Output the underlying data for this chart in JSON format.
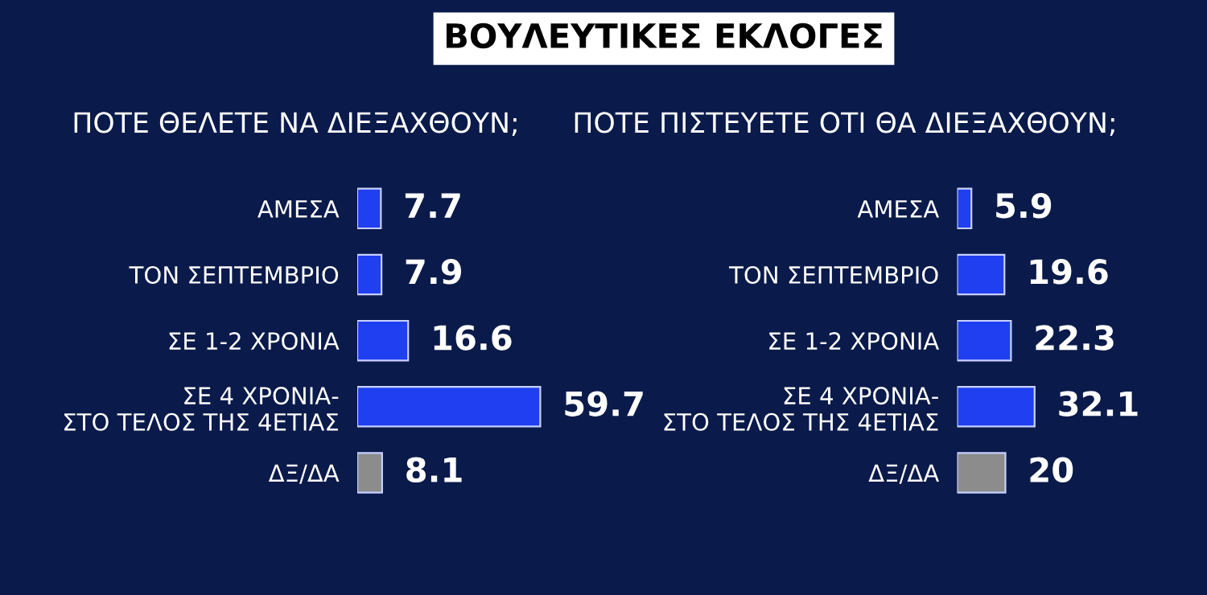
{
  "chart_data": [
    {
      "type": "bar",
      "orientation": "horizontal",
      "title": "ΒΟΥΛΕΥΤΙΚΕΣ ΕΚΛΟΓΕΣ",
      "subtitle": "ΠΟΤΕ ΘΕΛΕΤΕ ΝΑ ΔΙΕΞΑΧΘΟΥΝ;",
      "categories": [
        "ΑΜΕΣΑ",
        "ΤΟΝ ΣΕΠΤΕΜΒΡΙΟ",
        "ΣΕ 1-2 ΧΡΟΝΙΑ",
        "ΣΕ 4 ΧΡΟΝΙΑ-\nΣΤΟ ΤΕΛΟΣ ΤΗΣ 4ΕΤΙΑΣ",
        "ΔΞ/ΔΑ"
      ],
      "values": [
        7.7,
        7.9,
        16.6,
        59.7,
        8.1
      ],
      "colors": [
        "#1f3ff0",
        "#1f3ff0",
        "#1f3ff0",
        "#1f3ff0",
        "#8c8c8c"
      ],
      "data_labels": true,
      "tick_labels": "y",
      "grid": false,
      "legend": false
    },
    {
      "type": "bar",
      "orientation": "horizontal",
      "subtitle": "ΠΟΤΕ ΠΙΣΤΕΥΕΤΕ ΟΤΙ ΘΑ ΔΙΕΞΑΧΘΟΥΝ;",
      "categories": [
        "ΑΜΕΣΑ",
        "ΤΟΝ ΣΕΠΤΕΜΒΡΙΟ",
        "ΣΕ 1-2 ΧΡΟΝΙΑ",
        "ΣΕ 4 ΧΡΟΝΙΑ-\nΣΤΟ ΤΕΛΟΣ ΤΗΣ 4ΕΤΙΑΣ",
        "ΔΞ/ΔΑ"
      ],
      "values": [
        5.9,
        19.6,
        22.3,
        32.1,
        20
      ],
      "colors": [
        "#1f3ff0",
        "#1f3ff0",
        "#1f3ff0",
        "#1f3ff0",
        "#8c8c8c"
      ],
      "data_labels": true,
      "tick_labels": "y",
      "grid": false,
      "legend": false
    }
  ]
}
